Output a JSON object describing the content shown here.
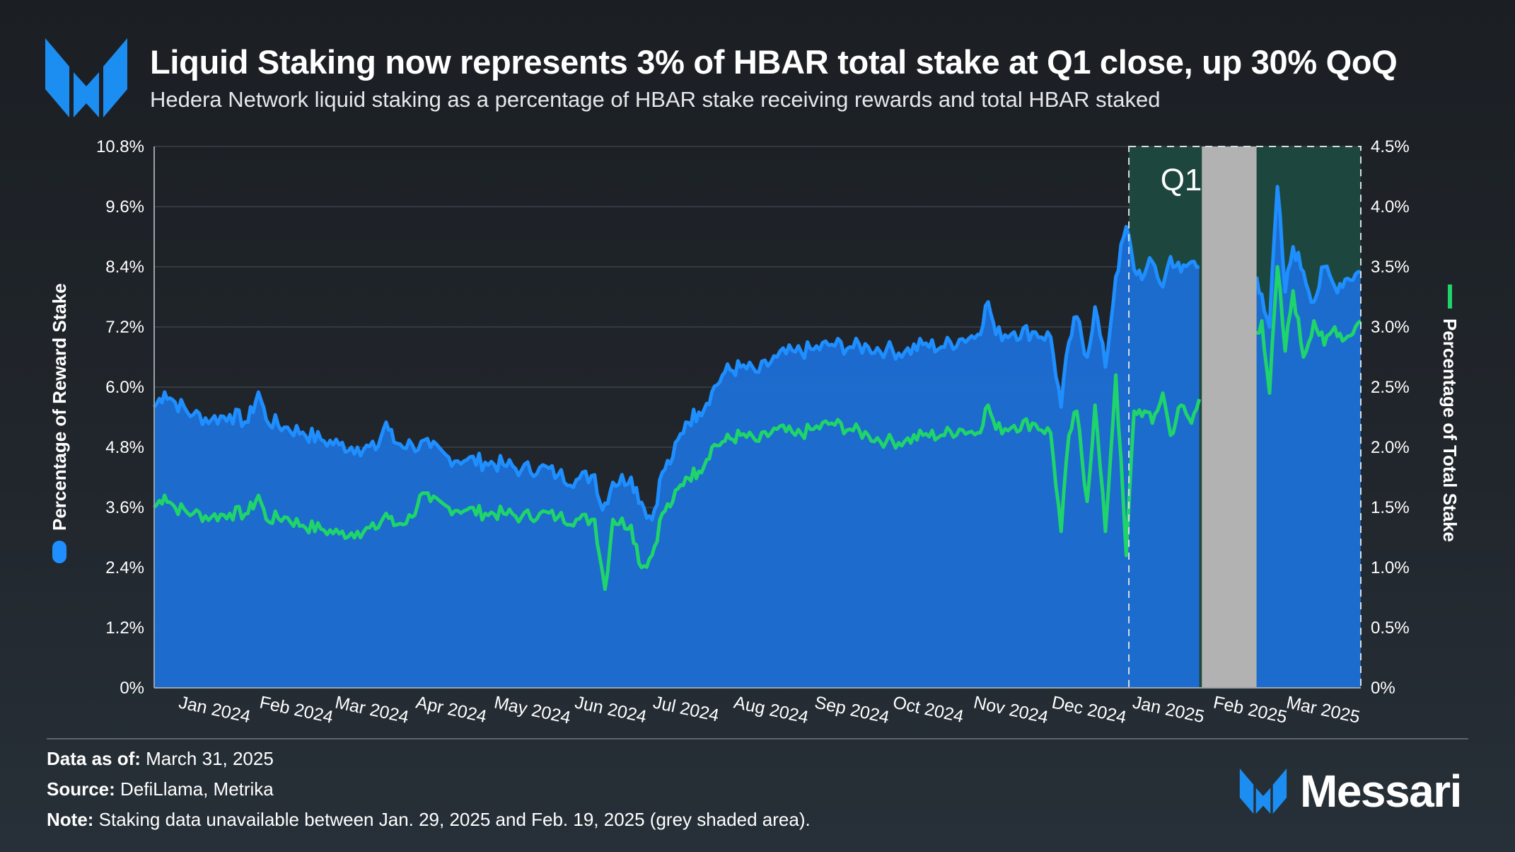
{
  "header": {
    "title": "Liquid Staking now represents 3% of HBAR total stake at Q1 close, up 30% QoQ",
    "subtitle": "Hedera Network liquid staking as a percentage of HBAR stake receiving rewards and total HBAR staked"
  },
  "colors": {
    "reward_series": "#1f8fff",
    "reward_area": "#1c6fd6",
    "total_series": "#1fd46a",
    "q1_highlight": "#1d4a3f",
    "unavailable": "#b1b2b1",
    "background": "#1b1f24"
  },
  "chart_data": {
    "type": "area",
    "x_range": [
      "2023-12-24",
      "2025-03-31"
    ],
    "x_tick_labels": [
      "Jan 2024",
      "Feb 2024",
      "Mar 2024",
      "Apr 2024",
      "May 2024",
      "Jun 2024",
      "Jul 2024",
      "Aug 2024",
      "Sep 2024",
      "Oct 2024",
      "Nov 2024",
      "Dec 2024",
      "Jan 2025",
      "Feb 2025",
      "Mar 2025"
    ],
    "y_left": {
      "label": "Percentage of Reward Stake",
      "ticks": [
        "0%",
        "1.2%",
        "2.4%",
        "3.6%",
        "4.8%",
        "6.0%",
        "7.2%",
        "8.4%",
        "9.6%",
        "10.8%"
      ],
      "range": [
        0,
        10.8
      ],
      "unit": "%"
    },
    "y_right": {
      "label": "Percentage of Total Stake",
      "ticks": [
        "0%",
        "0.5%",
        "1.0%",
        "1.5%",
        "2.0%",
        "2.5%",
        "3.0%",
        "3.5%",
        "4.0%",
        "4.5%"
      ],
      "range": [
        0,
        4.5
      ],
      "unit": "%"
    },
    "gridlines": true,
    "series": [
      {
        "name": "Percentage of Reward Stake",
        "axis": "left",
        "style": "area",
        "points": [
          [
            "2023-12-24",
            5.6
          ],
          [
            "2023-12-28",
            5.9
          ],
          [
            "2024-01-01",
            5.7
          ],
          [
            "2024-01-08",
            5.45
          ],
          [
            "2024-01-15",
            5.35
          ],
          [
            "2024-01-22",
            5.45
          ],
          [
            "2024-01-29",
            5.3
          ],
          [
            "2024-02-02",
            5.9
          ],
          [
            "2024-02-05",
            5.35
          ],
          [
            "2024-02-12",
            5.2
          ],
          [
            "2024-02-19",
            5.1
          ],
          [
            "2024-02-26",
            4.95
          ],
          [
            "2024-03-04",
            4.85
          ],
          [
            "2024-03-11",
            4.8
          ],
          [
            "2024-03-18",
            4.75
          ],
          [
            "2024-03-22",
            5.3
          ],
          [
            "2024-03-25",
            4.9
          ],
          [
            "2024-04-01",
            4.85
          ],
          [
            "2024-04-08",
            4.8
          ],
          [
            "2024-04-15",
            4.6
          ],
          [
            "2024-04-22",
            4.55
          ],
          [
            "2024-04-29",
            4.5
          ],
          [
            "2024-05-06",
            4.45
          ],
          [
            "2024-05-13",
            4.35
          ],
          [
            "2024-05-20",
            4.4
          ],
          [
            "2024-05-27",
            4.25
          ],
          [
            "2024-06-03",
            4.15
          ],
          [
            "2024-06-10",
            4.25
          ],
          [
            "2024-06-13",
            3.55
          ],
          [
            "2024-06-17",
            4.1
          ],
          [
            "2024-06-24",
            4.2
          ],
          [
            "2024-06-28",
            3.7
          ],
          [
            "2024-07-02",
            3.35
          ],
          [
            "2024-07-06",
            4.3
          ],
          [
            "2024-07-10",
            4.6
          ],
          [
            "2024-07-15",
            5.3
          ],
          [
            "2024-07-20",
            5.5
          ],
          [
            "2024-07-25",
            5.9
          ],
          [
            "2024-07-30",
            6.3
          ],
          [
            "2024-08-05",
            6.4
          ],
          [
            "2024-08-12",
            6.3
          ],
          [
            "2024-08-19",
            6.6
          ],
          [
            "2024-08-26",
            6.7
          ],
          [
            "2024-09-02",
            6.75
          ],
          [
            "2024-09-09",
            6.85
          ],
          [
            "2024-09-16",
            6.8
          ],
          [
            "2024-09-23",
            6.8
          ],
          [
            "2024-09-30",
            6.75
          ],
          [
            "2024-10-07",
            6.7
          ],
          [
            "2024-10-14",
            6.85
          ],
          [
            "2024-10-21",
            6.8
          ],
          [
            "2024-10-28",
            6.95
          ],
          [
            "2024-11-04",
            7.05
          ],
          [
            "2024-11-08",
            7.7
          ],
          [
            "2024-11-11",
            7.05
          ],
          [
            "2024-11-18",
            7.1
          ],
          [
            "2024-11-25",
            7.1
          ],
          [
            "2024-12-02",
            7.0
          ],
          [
            "2024-12-06",
            5.6
          ],
          [
            "2024-12-09",
            6.9
          ],
          [
            "2024-12-12",
            7.4
          ],
          [
            "2024-12-16",
            6.6
          ],
          [
            "2024-12-19",
            7.6
          ],
          [
            "2024-12-23",
            6.4
          ],
          [
            "2024-12-27",
            8.2
          ],
          [
            "2024-12-31",
            9.2
          ],
          [
            "2025-01-03",
            8.35
          ],
          [
            "2025-01-07",
            8.25
          ],
          [
            "2025-01-10",
            8.5
          ],
          [
            "2025-01-14",
            8.0
          ],
          [
            "2025-01-17",
            8.6
          ],
          [
            "2025-01-21",
            8.3
          ],
          [
            "2025-01-25",
            8.5
          ],
          [
            "2025-01-28",
            8.4
          ],
          [
            "2025-02-19",
            8.2
          ],
          [
            "2025-02-21",
            7.85
          ],
          [
            "2025-02-24",
            7.2
          ],
          [
            "2025-02-27",
            10.0
          ],
          [
            "2025-03-02",
            7.9
          ],
          [
            "2025-03-05",
            8.8
          ],
          [
            "2025-03-09",
            8.3
          ],
          [
            "2025-03-13",
            7.7
          ],
          [
            "2025-03-17",
            8.4
          ],
          [
            "2025-03-21",
            8.0
          ],
          [
            "2025-03-25",
            8.15
          ],
          [
            "2025-03-31",
            8.3
          ]
        ]
      },
      {
        "name": "Percentage of Total Stake",
        "axis": "right",
        "style": "line",
        "points": [
          [
            "2023-12-24",
            1.5
          ],
          [
            "2023-12-28",
            1.6
          ],
          [
            "2024-01-01",
            1.5
          ],
          [
            "2024-01-08",
            1.45
          ],
          [
            "2024-01-15",
            1.42
          ],
          [
            "2024-01-22",
            1.45
          ],
          [
            "2024-01-29",
            1.45
          ],
          [
            "2024-02-02",
            1.6
          ],
          [
            "2024-02-05",
            1.4
          ],
          [
            "2024-02-12",
            1.42
          ],
          [
            "2024-02-19",
            1.35
          ],
          [
            "2024-02-26",
            1.32
          ],
          [
            "2024-03-04",
            1.28
          ],
          [
            "2024-03-11",
            1.3
          ],
          [
            "2024-03-18",
            1.32
          ],
          [
            "2024-03-22",
            1.45
          ],
          [
            "2024-03-25",
            1.35
          ],
          [
            "2024-04-01",
            1.42
          ],
          [
            "2024-04-04",
            1.6
          ],
          [
            "2024-04-08",
            1.55
          ],
          [
            "2024-04-15",
            1.5
          ],
          [
            "2024-04-22",
            1.48
          ],
          [
            "2024-04-29",
            1.45
          ],
          [
            "2024-05-06",
            1.45
          ],
          [
            "2024-05-13",
            1.42
          ],
          [
            "2024-05-20",
            1.45
          ],
          [
            "2024-05-27",
            1.42
          ],
          [
            "2024-06-03",
            1.4
          ],
          [
            "2024-06-10",
            1.4
          ],
          [
            "2024-06-14",
            0.82
          ],
          [
            "2024-06-17",
            1.4
          ],
          [
            "2024-06-24",
            1.35
          ],
          [
            "2024-06-28",
            1.0
          ],
          [
            "2024-07-02",
            1.1
          ],
          [
            "2024-07-06",
            1.45
          ],
          [
            "2024-07-10",
            1.55
          ],
          [
            "2024-07-15",
            1.75
          ],
          [
            "2024-07-20",
            1.8
          ],
          [
            "2024-07-25",
            2.0
          ],
          [
            "2024-07-30",
            2.05
          ],
          [
            "2024-08-05",
            2.1
          ],
          [
            "2024-08-12",
            2.05
          ],
          [
            "2024-08-19",
            2.15
          ],
          [
            "2024-08-26",
            2.1
          ],
          [
            "2024-09-02",
            2.15
          ],
          [
            "2024-09-09",
            2.2
          ],
          [
            "2024-09-16",
            2.15
          ],
          [
            "2024-09-23",
            2.1
          ],
          [
            "2024-09-30",
            2.05
          ],
          [
            "2024-10-07",
            2.05
          ],
          [
            "2024-10-14",
            2.1
          ],
          [
            "2024-10-21",
            2.1
          ],
          [
            "2024-10-28",
            2.15
          ],
          [
            "2024-11-04",
            2.12
          ],
          [
            "2024-11-08",
            2.35
          ],
          [
            "2024-11-11",
            2.15
          ],
          [
            "2024-11-18",
            2.18
          ],
          [
            "2024-11-25",
            2.2
          ],
          [
            "2024-12-02",
            2.12
          ],
          [
            "2024-12-06",
            1.3
          ],
          [
            "2024-12-09",
            2.1
          ],
          [
            "2024-12-12",
            2.3
          ],
          [
            "2024-12-16",
            1.55
          ],
          [
            "2024-12-19",
            2.35
          ],
          [
            "2024-12-23",
            1.3
          ],
          [
            "2024-12-27",
            2.6
          ],
          [
            "2024-12-31",
            1.1
          ],
          [
            "2025-01-03",
            2.3
          ],
          [
            "2025-01-07",
            2.3
          ],
          [
            "2025-01-10",
            2.2
          ],
          [
            "2025-01-14",
            2.45
          ],
          [
            "2025-01-17",
            2.1
          ],
          [
            "2025-01-21",
            2.35
          ],
          [
            "2025-01-25",
            2.2
          ],
          [
            "2025-01-28",
            2.4
          ],
          [
            "2025-02-19",
            2.95
          ],
          [
            "2025-02-21",
            3.05
          ],
          [
            "2025-02-24",
            2.45
          ],
          [
            "2025-02-27",
            3.5
          ],
          [
            "2025-03-02",
            2.8
          ],
          [
            "2025-03-05",
            3.3
          ],
          [
            "2025-03-09",
            2.75
          ],
          [
            "2025-03-13",
            3.05
          ],
          [
            "2025-03-17",
            2.85
          ],
          [
            "2025-03-21",
            3.0
          ],
          [
            "2025-03-25",
            2.9
          ],
          [
            "2025-03-31",
            3.05
          ]
        ]
      }
    ],
    "annotations": [
      {
        "label": "Q1",
        "from": "2025-01-01",
        "to": "2025-03-31",
        "style": "dashed green-shaded box"
      },
      {
        "label": "",
        "from": "2025-01-29",
        "to": "2025-02-19",
        "style": "grey shaded (data unavailable)"
      }
    ]
  },
  "footer": {
    "data_label": "Data as of:",
    "data_value": " March 31, 2025",
    "source_label": "Source:",
    "source_value": " DefiLlama, Metrika",
    "note_label": "Note:",
    "note_value": " Staking data unavailable between Jan. 29, 2025 and Feb. 19, 2025 (grey shaded area).",
    "brand": "Messari"
  }
}
